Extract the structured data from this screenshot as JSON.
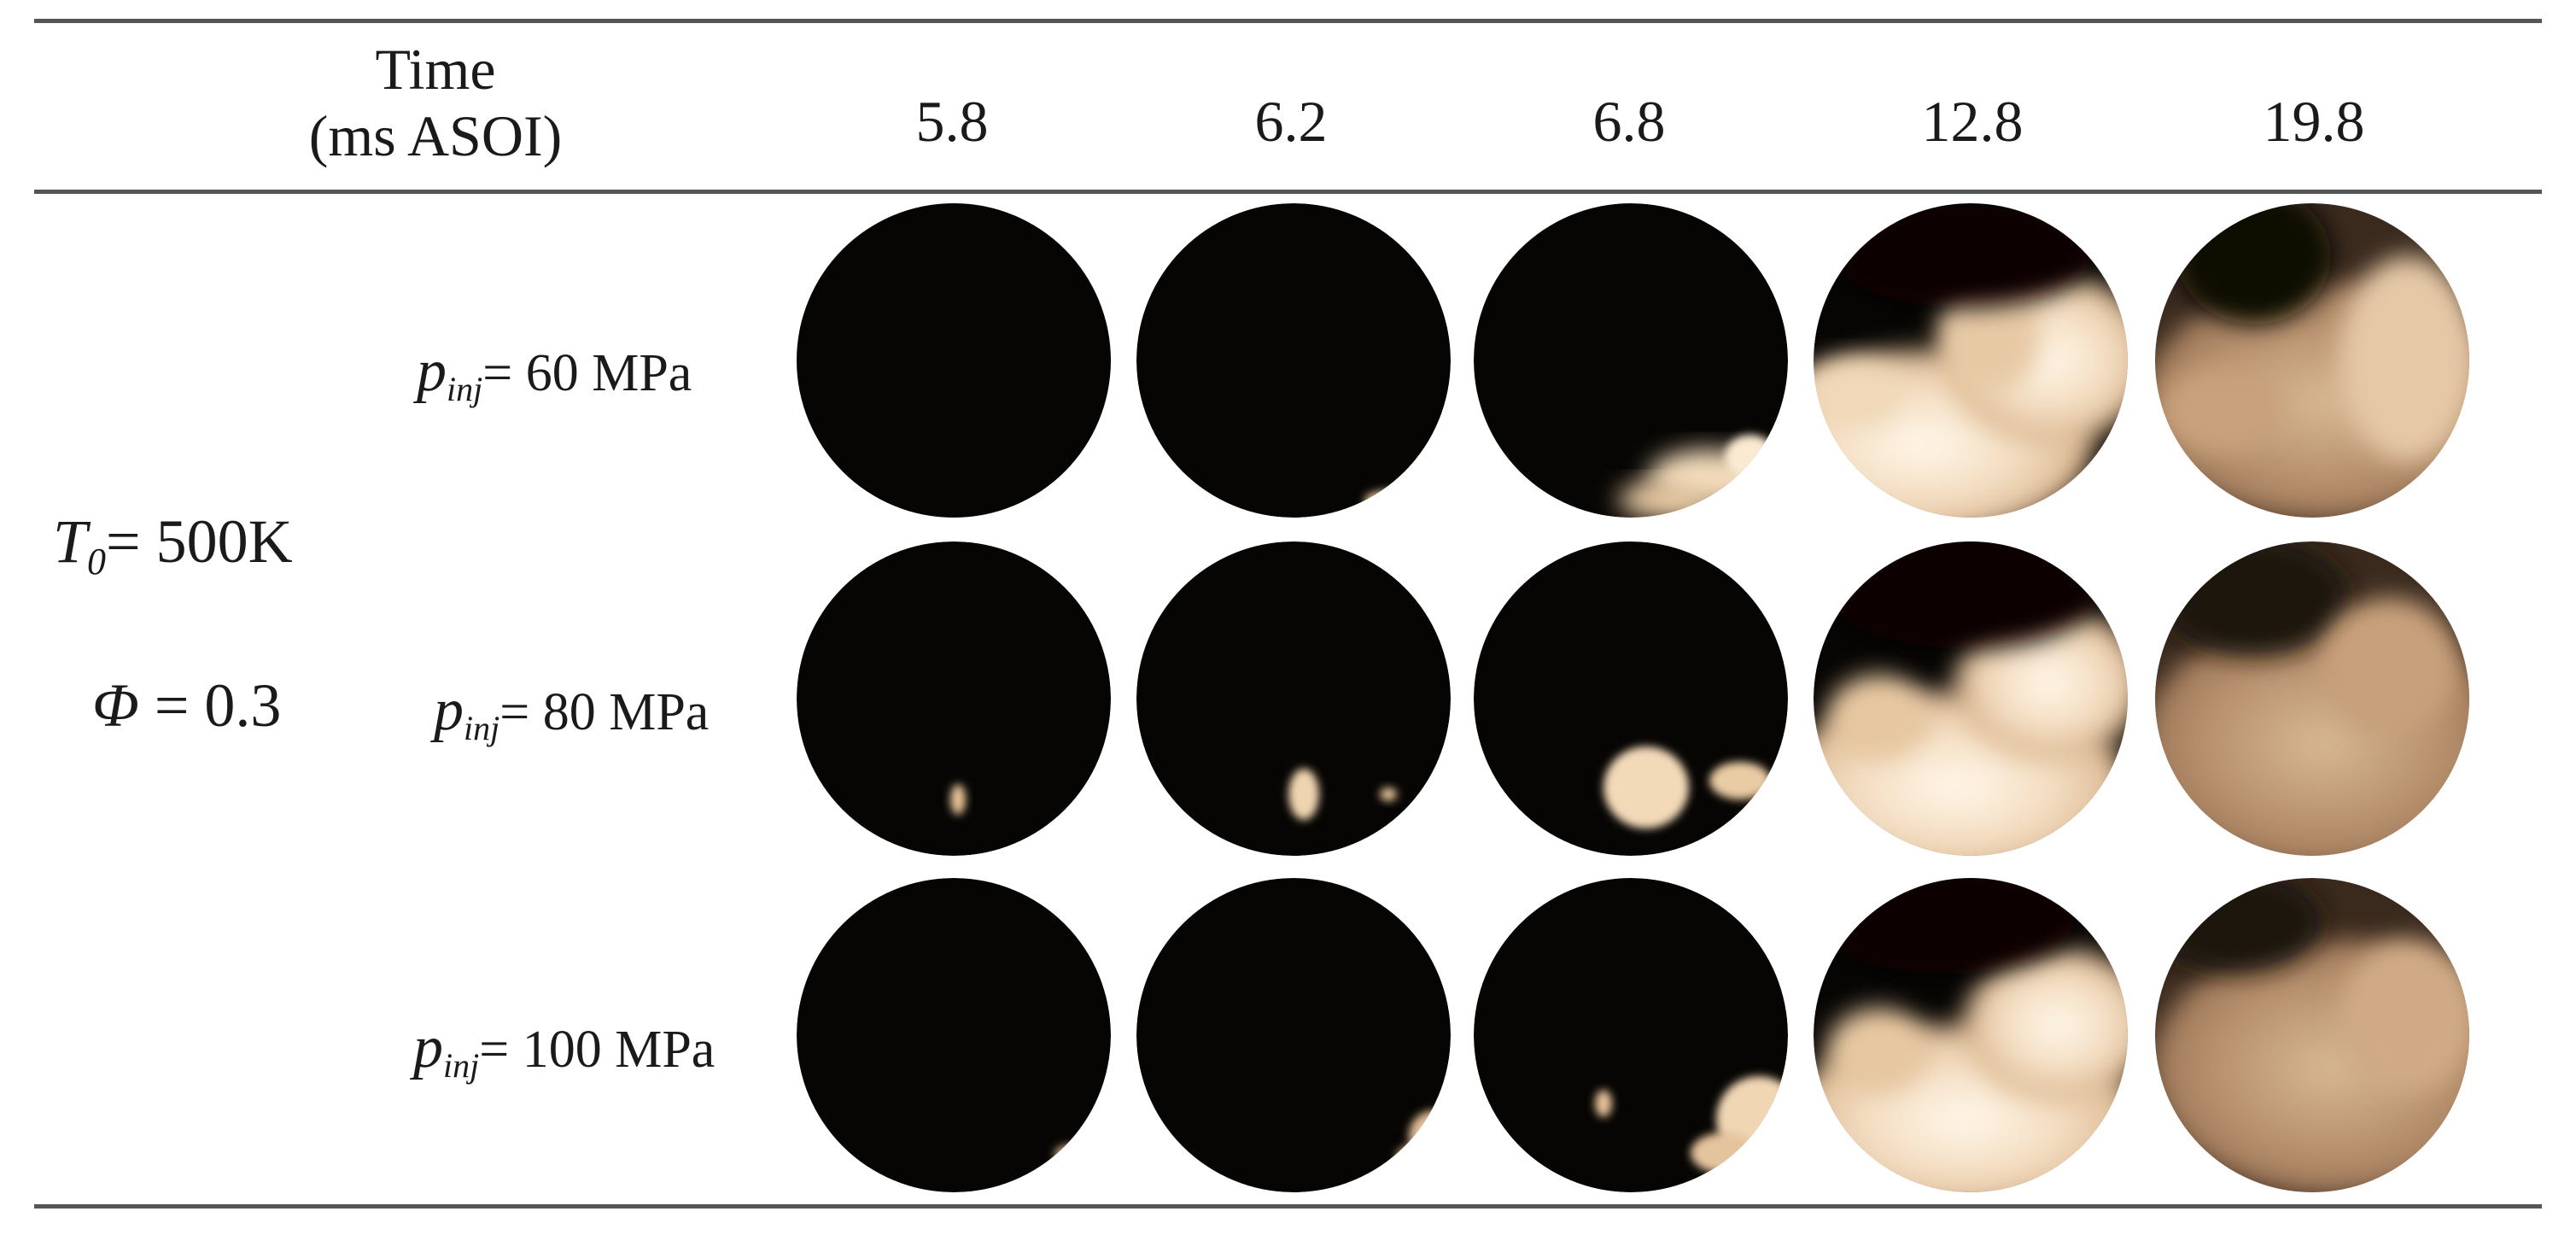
{
  "header": {
    "time_label_line1": "Time",
    "time_label_line2": "(ms ASOI)",
    "times": [
      "5.8",
      "6.2",
      "6.8",
      "12.8",
      "19.8"
    ]
  },
  "conditions": {
    "t0_symbol": "T",
    "t0_sub": "0",
    "t0_value": "= 500K",
    "phi_symbol": "Φ",
    "phi_value": " = 0.3"
  },
  "rows": [
    {
      "p_symbol": "p",
      "p_sub": "inj",
      "p_value": "= 60 MPa"
    },
    {
      "p_symbol": "p",
      "p_sub": "inj",
      "p_value": "= 80 MPa"
    },
    {
      "p_symbol": "p",
      "p_sub": "inj",
      "p_value": "= 100 MPa"
    }
  ],
  "colors": {
    "frame_dark": "#070503",
    "flame_bright": "#fff4e2",
    "flame_mid": "#e6c7a1",
    "flame_dim": "#b88e66",
    "rule": "#555555"
  }
}
